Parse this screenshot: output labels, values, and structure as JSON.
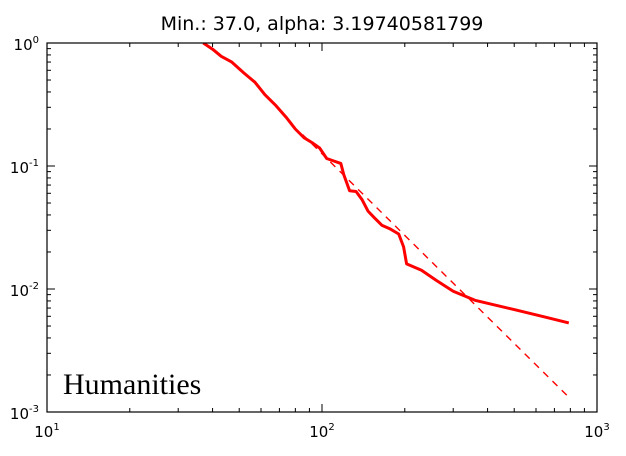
{
  "chart_data": {
    "type": "line",
    "title": "Min.: 37.0, alpha: 3.19740581799",
    "xlabel": "",
    "ylabel": "",
    "xscale": "log",
    "yscale": "log",
    "xlim": [
      10,
      1000
    ],
    "ylim": [
      0.001,
      1
    ],
    "grid": false,
    "x_ticks": [
      {
        "value": 10,
        "base": "10",
        "exp": "1"
      },
      {
        "value": 100,
        "base": "10",
        "exp": "2"
      },
      {
        "value": 1000,
        "base": "10",
        "exp": "3"
      }
    ],
    "y_ticks": [
      {
        "value": 1,
        "base": "10",
        "exp": "0"
      },
      {
        "value": 0.1,
        "base": "10",
        "exp": "-1"
      },
      {
        "value": 0.01,
        "base": "10",
        "exp": "-2"
      },
      {
        "value": 0.001,
        "base": "10",
        "exp": "-3"
      }
    ],
    "annotation": "Humanities",
    "series": [
      {
        "style": "solid",
        "color": "#ff0000",
        "points": [
          [
            37.0,
            1.0
          ],
          [
            40.0,
            0.89
          ],
          [
            43.0,
            0.78
          ],
          [
            47.0,
            0.7
          ],
          [
            52.0,
            0.57
          ],
          [
            57.0,
            0.48
          ],
          [
            62.0,
            0.38
          ],
          [
            68.0,
            0.31
          ],
          [
            74.0,
            0.25
          ],
          [
            80.0,
            0.2
          ],
          [
            86.0,
            0.17
          ],
          [
            92.0,
            0.155
          ],
          [
            98.0,
            0.14
          ],
          [
            104.0,
            0.115
          ],
          [
            110.0,
            0.11
          ],
          [
            117.0,
            0.105
          ],
          [
            120.0,
            0.085
          ],
          [
            126.0,
            0.063
          ],
          [
            133.0,
            0.062
          ],
          [
            140.0,
            0.053
          ],
          [
            147.0,
            0.043
          ],
          [
            155.0,
            0.038
          ],
          [
            165.0,
            0.033
          ],
          [
            176.0,
            0.031
          ],
          [
            190.0,
            0.028
          ],
          [
            198.0,
            0.022
          ],
          [
            203.0,
            0.016
          ],
          [
            230.0,
            0.0142
          ],
          [
            260.0,
            0.0118
          ],
          [
            300.0,
            0.0096
          ],
          [
            360.0,
            0.0081
          ],
          [
            500.0,
            0.0068
          ],
          [
            650.0,
            0.0059
          ],
          [
            790.0,
            0.0053
          ]
        ]
      },
      {
        "style": "dashed",
        "color": "#ff0000",
        "points": [
          [
            85.0,
            0.18
          ],
          [
            790.0,
            0.00132
          ]
        ]
      }
    ]
  }
}
